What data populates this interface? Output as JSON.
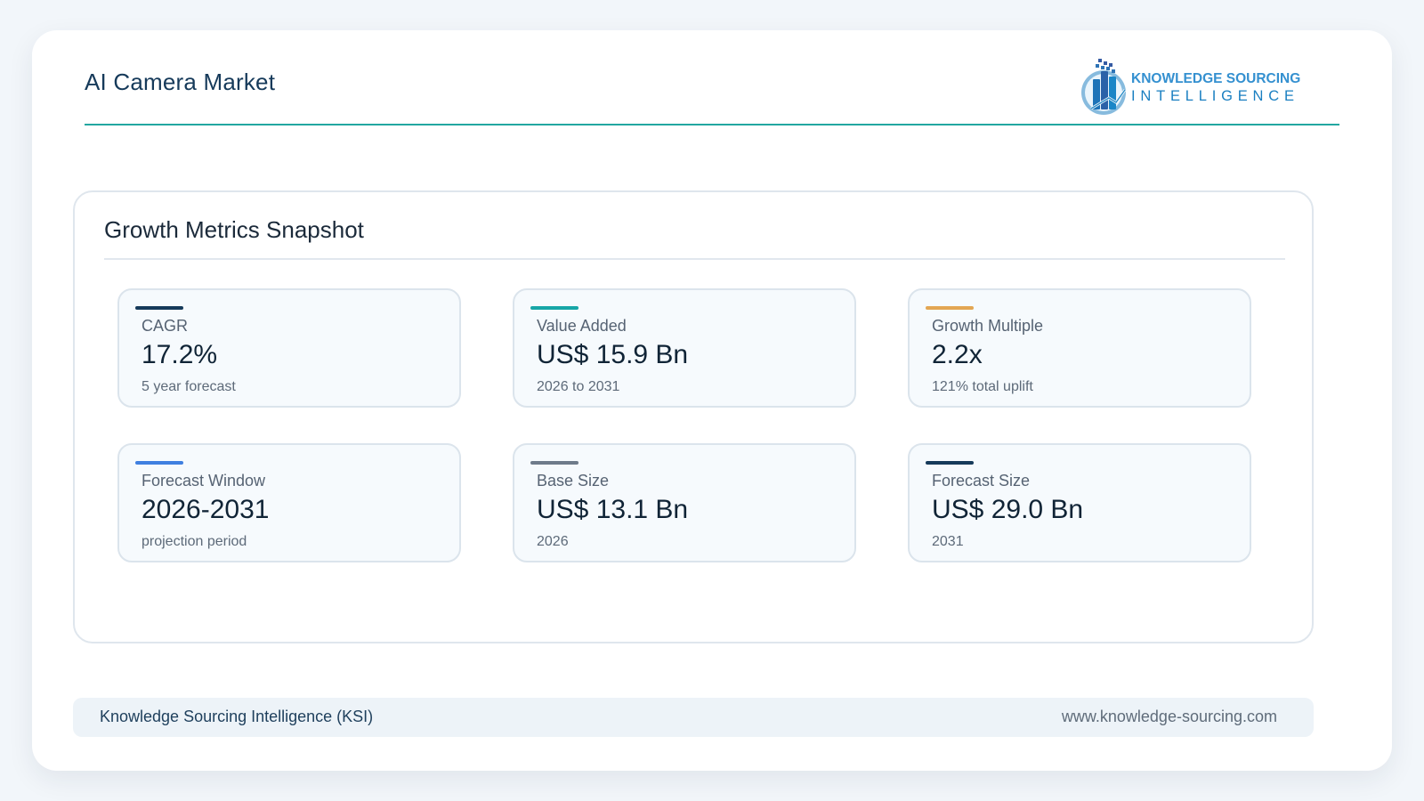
{
  "header": {
    "title": "AI Camera Market",
    "logo": {
      "line1": "KNOWLEDGE SOURCING",
      "line2": "INTELLIGENCE",
      "icon": "knowledge-sourcing-logo-icon",
      "colors": {
        "primary": "#3490d0",
        "secondary": "#1a7fc1",
        "accent": "#2f4f9c"
      }
    }
  },
  "snapshot": {
    "title": "Growth Metrics Snapshot",
    "metrics": [
      {
        "label": "CAGR",
        "value": "17.2%",
        "sub": "5 year forecast",
        "accent_color": "#163a5a"
      },
      {
        "label": "Value Added",
        "value": "US$ 15.9 Bn",
        "sub": "2026 to 2031",
        "accent_color": "#17a6a7"
      },
      {
        "label": "Growth Multiple",
        "value": "2.2x",
        "sub": "121% total uplift",
        "accent_color": "#e3a653"
      },
      {
        "label": "Forecast Window",
        "value": "2026-2031",
        "sub": "projection period",
        "accent_color": "#3f7fe0"
      },
      {
        "label": "Base Size",
        "value": "US$ 13.1 Bn",
        "sub": "2026",
        "accent_color": "#6e7b8a"
      },
      {
        "label": "Forecast Size",
        "value": "US$ 29.0 Bn",
        "sub": "2031",
        "accent_color": "#163a5a"
      }
    ]
  },
  "footer": {
    "left": "Knowledge Sourcing Intelligence (KSI)",
    "right": "www.knowledge-sourcing.com"
  },
  "colors": {
    "brand_teal": "#22a7a1",
    "page_background": "#f2f6fa",
    "card_background": "#ffffff"
  }
}
